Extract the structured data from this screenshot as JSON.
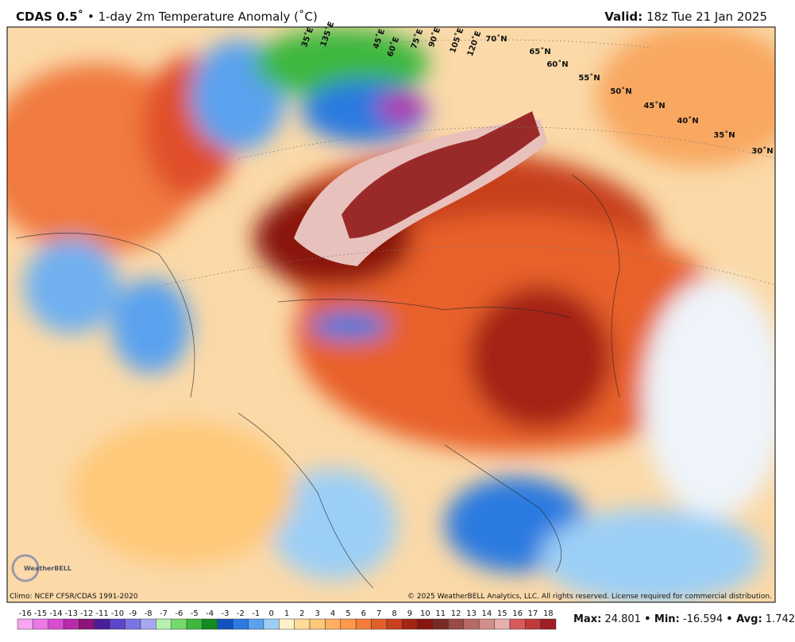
{
  "header": {
    "title_bold": "CDAS 0.5˚",
    "title_rest": "• 1-day 2m Temperature Anomaly (˚C)",
    "valid_label": "Valid:",
    "valid_time": "18z Tue 21 Jan 2025"
  },
  "map": {
    "lat_labels": [
      "70˚N",
      "65˚N",
      "60˚N",
      "55˚N",
      "50˚N",
      "45˚N",
      "40˚N",
      "35˚N",
      "30˚N"
    ],
    "lon_labels": [
      "35˚E",
      "45˚E",
      "60˚E",
      "75˚E",
      "90˚E",
      "105˚E",
      "120˚E",
      "135˚E"
    ],
    "logo": "WeatherBELL"
  },
  "footer": {
    "climo": "Climo: NCEP CFSR/CDAS 1991-2020",
    "copyright": "© 2025 WeatherBELL Analytics, LLC. All rights reserved. License required for commercial distribution."
  },
  "colorbar": {
    "values": [
      -16,
      -15,
      -14,
      -13,
      -12,
      -11,
      -10,
      -9,
      -8,
      -7,
      -6,
      -5,
      -4,
      -3,
      -2,
      -1,
      0,
      1,
      2,
      3,
      4,
      5,
      6,
      7,
      8,
      9,
      10,
      11,
      12,
      13,
      14,
      15,
      16,
      17,
      18
    ],
    "colors": [
      "#f7a6f0",
      "#ec78e6",
      "#d84ed2",
      "#b82aa8",
      "#8c1478",
      "#4a1e9a",
      "#5a46c8",
      "#7a74e2",
      "#a6a8f2",
      "#b4f0b0",
      "#74da6c",
      "#3cb83c",
      "#148a22",
      "#1452c2",
      "#2c7ae0",
      "#5aa2ee",
      "#9ccff6",
      "#fff2c8",
      "#ffdc96",
      "#ffc878",
      "#ffb060",
      "#ff984a",
      "#f47c3a",
      "#e0602c",
      "#c8401e",
      "#a42414",
      "#8a1410",
      "#7a2a26",
      "#9a4a46",
      "#b86a66",
      "#d48e8a",
      "#e6b0ae",
      "#d85a5a",
      "#c03a3a",
      "#a01e26"
    ]
  },
  "stats": [
    {
      "label": "Max:",
      "value": 24.801
    },
    {
      "label": "• Min:",
      "value": -16.594
    },
    {
      "label": "• Avg:",
      "value": 1.742
    }
  ]
}
